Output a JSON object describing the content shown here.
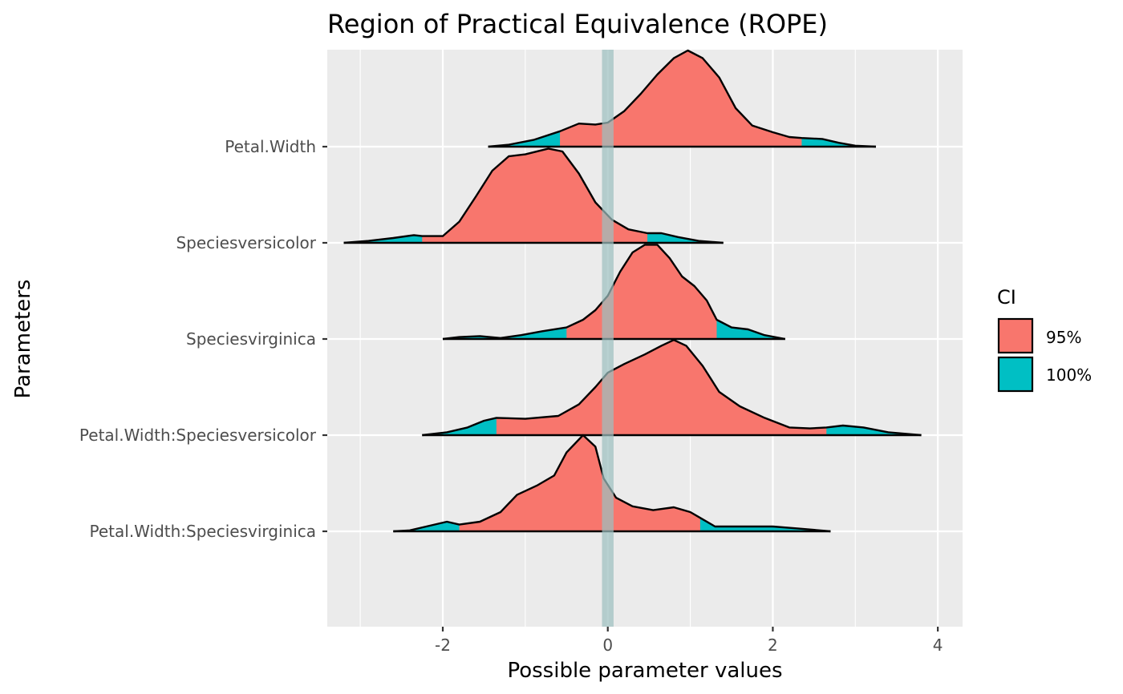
{
  "chart_data": {
    "type": "area",
    "subtype": "ridgeline-density",
    "title": "Region of Practical Equivalence (ROPE)",
    "xlabel": "Possible parameter values",
    "ylabel": "Parameters",
    "xlim": [
      -3.4,
      4.3
    ],
    "x_ticks": [
      -2,
      0,
      2,
      4
    ],
    "x_tick_labels": [
      "-2",
      "0",
      "2",
      "4"
    ],
    "grid": true,
    "rope": {
      "low": -0.07,
      "high": 0.07,
      "color": "#9dbfbf"
    },
    "legend": {
      "title": "CI",
      "position": "right",
      "items": [
        {
          "label": "95%",
          "color": "#F8766D"
        },
        {
          "label": "100%",
          "color": "#00BFC4"
        }
      ]
    },
    "series": [
      {
        "name": "Petal.Width",
        "ci95": [
          -0.58,
          2.35
        ],
        "density": [
          [
            -1.45,
            0.0
          ],
          [
            -1.2,
            0.02
          ],
          [
            -0.9,
            0.07
          ],
          [
            -0.58,
            0.16
          ],
          [
            -0.35,
            0.24
          ],
          [
            -0.15,
            0.23
          ],
          [
            0.0,
            0.25
          ],
          [
            0.2,
            0.37
          ],
          [
            0.4,
            0.55
          ],
          [
            0.6,
            0.75
          ],
          [
            0.8,
            0.92
          ],
          [
            0.97,
            1.0
          ],
          [
            1.15,
            0.92
          ],
          [
            1.35,
            0.72
          ],
          [
            1.55,
            0.4
          ],
          [
            1.75,
            0.22
          ],
          [
            2.0,
            0.15
          ],
          [
            2.2,
            0.1
          ],
          [
            2.35,
            0.09
          ],
          [
            2.6,
            0.08
          ],
          [
            2.8,
            0.04
          ],
          [
            3.0,
            0.01
          ],
          [
            3.25,
            0.0
          ]
        ]
      },
      {
        "name": "Speciesversicolor",
        "ci95": [
          -2.25,
          0.48
        ],
        "density": [
          [
            -3.2,
            0.0
          ],
          [
            -2.9,
            0.02
          ],
          [
            -2.6,
            0.05
          ],
          [
            -2.35,
            0.08
          ],
          [
            -2.25,
            0.07
          ],
          [
            -2.0,
            0.07
          ],
          [
            -1.8,
            0.22
          ],
          [
            -1.6,
            0.48
          ],
          [
            -1.4,
            0.75
          ],
          [
            -1.2,
            0.9
          ],
          [
            -1.0,
            0.92
          ],
          [
            -0.72,
            0.98
          ],
          [
            -0.55,
            0.95
          ],
          [
            -0.35,
            0.72
          ],
          [
            -0.15,
            0.42
          ],
          [
            0.05,
            0.24
          ],
          [
            0.25,
            0.14
          ],
          [
            0.48,
            0.1
          ],
          [
            0.65,
            0.1
          ],
          [
            0.85,
            0.06
          ],
          [
            1.1,
            0.02
          ],
          [
            1.4,
            0.0
          ]
        ]
      },
      {
        "name": "Speciesvirginica",
        "ci95": [
          -0.5,
          1.32
        ],
        "density": [
          [
            -2.0,
            0.0
          ],
          [
            -1.8,
            0.02
          ],
          [
            -1.55,
            0.03
          ],
          [
            -1.3,
            0.01
          ],
          [
            -1.05,
            0.04
          ],
          [
            -0.8,
            0.08
          ],
          [
            -0.5,
            0.12
          ],
          [
            -0.3,
            0.2
          ],
          [
            -0.15,
            0.3
          ],
          [
            0.0,
            0.45
          ],
          [
            0.15,
            0.7
          ],
          [
            0.3,
            0.9
          ],
          [
            0.45,
            0.98
          ],
          [
            0.6,
            0.98
          ],
          [
            0.75,
            0.84
          ],
          [
            0.9,
            0.65
          ],
          [
            1.05,
            0.55
          ],
          [
            1.2,
            0.4
          ],
          [
            1.32,
            0.2
          ],
          [
            1.5,
            0.12
          ],
          [
            1.7,
            0.1
          ],
          [
            1.9,
            0.04
          ],
          [
            2.15,
            0.0
          ]
        ]
      },
      {
        "name": "Petal.Width:Speciesversicolor",
        "ci95": [
          -1.35,
          2.65
        ],
        "density": [
          [
            -2.25,
            0.0
          ],
          [
            -1.95,
            0.03
          ],
          [
            -1.7,
            0.08
          ],
          [
            -1.5,
            0.15
          ],
          [
            -1.35,
            0.18
          ],
          [
            -1.0,
            0.17
          ],
          [
            -0.6,
            0.2
          ],
          [
            -0.35,
            0.32
          ],
          [
            -0.15,
            0.5
          ],
          [
            0.0,
            0.65
          ],
          [
            0.2,
            0.74
          ],
          [
            0.45,
            0.84
          ],
          [
            0.65,
            0.93
          ],
          [
            0.8,
            0.99
          ],
          [
            0.95,
            0.93
          ],
          [
            1.15,
            0.72
          ],
          [
            1.35,
            0.45
          ],
          [
            1.6,
            0.3
          ],
          [
            1.9,
            0.18
          ],
          [
            2.2,
            0.08
          ],
          [
            2.45,
            0.07
          ],
          [
            2.65,
            0.08
          ],
          [
            2.85,
            0.1
          ],
          [
            3.1,
            0.08
          ],
          [
            3.4,
            0.03
          ],
          [
            3.8,
            0.0
          ]
        ]
      },
      {
        "name": "Petal.Width:Speciesvirginica",
        "ci95": [
          -1.8,
          1.12
        ],
        "density": [
          [
            -2.6,
            0.0
          ],
          [
            -2.4,
            0.01
          ],
          [
            -2.2,
            0.05
          ],
          [
            -1.95,
            0.1
          ],
          [
            -1.8,
            0.07
          ],
          [
            -1.55,
            0.1
          ],
          [
            -1.3,
            0.2
          ],
          [
            -1.1,
            0.38
          ],
          [
            -0.85,
            0.48
          ],
          [
            -0.65,
            0.58
          ],
          [
            -0.5,
            0.82
          ],
          [
            -0.3,
            1.0
          ],
          [
            -0.15,
            0.88
          ],
          [
            -0.05,
            0.55
          ],
          [
            0.1,
            0.35
          ],
          [
            0.3,
            0.26
          ],
          [
            0.55,
            0.22
          ],
          [
            0.8,
            0.25
          ],
          [
            1.0,
            0.2
          ],
          [
            1.12,
            0.14
          ],
          [
            1.3,
            0.05
          ],
          [
            1.6,
            0.05
          ],
          [
            2.0,
            0.05
          ],
          [
            2.3,
            0.03
          ],
          [
            2.7,
            0.0
          ]
        ]
      }
    ]
  }
}
